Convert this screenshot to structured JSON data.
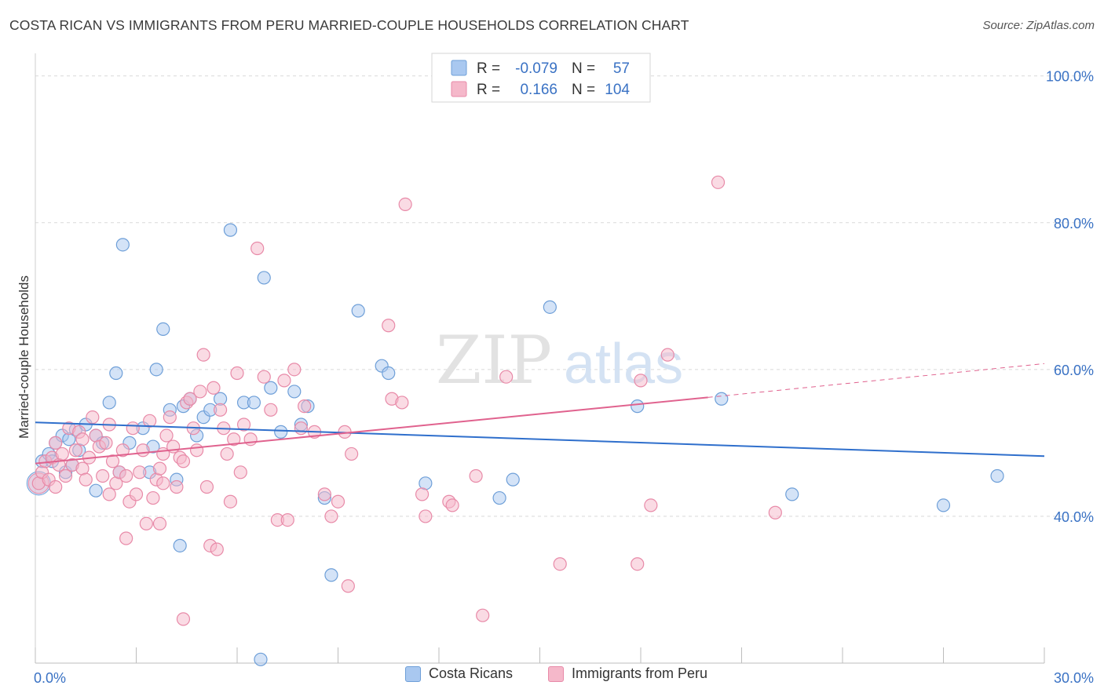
{
  "header": {
    "title": "COSTA RICAN VS IMMIGRANTS FROM PERU MARRIED-COUPLE HOUSEHOLDS CORRELATION CHART",
    "source": "Source: ZipAtlas.com"
  },
  "watermark": {
    "zip": "ZIP",
    "atlas": "atlas"
  },
  "colors": {
    "blue_fill": "#a9c8f0",
    "blue_stroke": "#6e9fd8",
    "blue_line": "#2f6fcc",
    "pink_fill": "#f5b8ca",
    "pink_stroke": "#e88aa8",
    "pink_line": "#e0628e",
    "axis_text": "#3a72c4",
    "grid": "#d9d9d9"
  },
  "stats_legend": {
    "rows": [
      {
        "r_label": "R =",
        "r_value": "-0.079",
        "n_label": "N =",
        "n_value": "57"
      },
      {
        "r_label": "R =",
        "r_value": "0.166",
        "n_label": "N =",
        "n_value": "104"
      }
    ]
  },
  "bottom_legend": {
    "items": [
      "Costa Ricans",
      "Immigrants from Peru"
    ]
  },
  "chart_data": {
    "type": "scatter",
    "title": "COSTA RICAN VS IMMIGRANTS FROM PERU MARRIED-COUPLE HOUSEHOLDS CORRELATION CHART",
    "xlabel": "",
    "ylabel": "Married-couple Households",
    "xlim": [
      0,
      30
    ],
    "ylim": [
      20,
      102
    ],
    "x_tick_labels": [
      "0.0%",
      "30.0%"
    ],
    "y_ticks": [
      40,
      60,
      80,
      100
    ],
    "y_tick_labels": [
      "40.0%",
      "60.0%",
      "80.0%",
      "100.0%"
    ],
    "grid": true,
    "legend_position": "top-center",
    "series": [
      {
        "name": "Costa Ricans",
        "color": "#a9c8f0",
        "trend": {
          "x": [
            0,
            30
          ],
          "y": [
            52.8,
            48.2
          ]
        },
        "points": [
          [
            0.2,
            47.5
          ],
          [
            0.4,
            48.5
          ],
          [
            0.6,
            50.0
          ],
          [
            0.8,
            51.0
          ],
          [
            1.0,
            50.5
          ],
          [
            0.9,
            46.0
          ],
          [
            1.2,
            51.8
          ],
          [
            1.5,
            52.5
          ],
          [
            1.3,
            49.0
          ],
          [
            1.8,
            51.0
          ],
          [
            2.0,
            50.0
          ],
          [
            2.2,
            55.5
          ],
          [
            2.4,
            59.5
          ],
          [
            1.8,
            43.5
          ],
          [
            2.6,
            77.0
          ],
          [
            2.5,
            46.0
          ],
          [
            3.2,
            52.0
          ],
          [
            3.6,
            60.0
          ],
          [
            3.8,
            65.5
          ],
          [
            3.5,
            49.5
          ],
          [
            4.0,
            54.5
          ],
          [
            4.2,
            45.0
          ],
          [
            4.4,
            55.0
          ],
          [
            4.6,
            56.0
          ],
          [
            4.8,
            51.0
          ],
          [
            5.0,
            53.5
          ],
          [
            5.2,
            54.5
          ],
          [
            5.5,
            56.0
          ],
          [
            5.8,
            79.0
          ],
          [
            6.2,
            55.5
          ],
          [
            6.5,
            55.5
          ],
          [
            6.8,
            72.5
          ],
          [
            7.0,
            57.5
          ],
          [
            7.3,
            51.5
          ],
          [
            7.7,
            57.0
          ],
          [
            7.9,
            52.5
          ],
          [
            8.1,
            55.0
          ],
          [
            8.6,
            42.5
          ],
          [
            8.8,
            32.0
          ],
          [
            9.6,
            68.0
          ],
          [
            10.3,
            60.5
          ],
          [
            10.5,
            59.5
          ],
          [
            11.6,
            44.5
          ],
          [
            13.8,
            42.5
          ],
          [
            14.2,
            45.0
          ],
          [
            15.3,
            68.5
          ],
          [
            17.9,
            55.0
          ],
          [
            20.4,
            56.0
          ],
          [
            22.5,
            43.0
          ],
          [
            27.0,
            41.5
          ],
          [
            28.6,
            45.5
          ],
          [
            4.3,
            36.0
          ],
          [
            6.7,
            20.5
          ],
          [
            0.5,
            47.5
          ],
          [
            1.1,
            47.0
          ],
          [
            3.4,
            46.0
          ],
          [
            2.8,
            50.0
          ]
        ]
      },
      {
        "name": "Immigrants from Peru",
        "color": "#f5b8ca",
        "trend": {
          "x": [
            0,
            20
          ],
          "y": [
            47.2,
            56.2
          ]
        },
        "trend_dashed": {
          "x": [
            20,
            30
          ],
          "y": [
            56.2,
            60.8
          ]
        },
        "points": [
          [
            0.1,
            44.5
          ],
          [
            0.2,
            46.0
          ],
          [
            0.3,
            47.5
          ],
          [
            0.4,
            45.0
          ],
          [
            0.5,
            48.0
          ],
          [
            0.6,
            50.0
          ],
          [
            0.7,
            47.0
          ],
          [
            0.8,
            48.5
          ],
          [
            0.9,
            45.5
          ],
          [
            1.0,
            52.0
          ],
          [
            1.1,
            47.0
          ],
          [
            1.2,
            49.0
          ],
          [
            1.3,
            51.5
          ],
          [
            1.4,
            46.5
          ],
          [
            1.5,
            45.0
          ],
          [
            1.6,
            48.0
          ],
          [
            1.7,
            53.5
          ],
          [
            1.8,
            51.0
          ],
          [
            1.9,
            49.5
          ],
          [
            2.0,
            45.5
          ],
          [
            2.1,
            50.0
          ],
          [
            2.2,
            52.5
          ],
          [
            2.3,
            47.5
          ],
          [
            2.4,
            44.5
          ],
          [
            2.5,
            46.0
          ],
          [
            2.6,
            49.0
          ],
          [
            2.7,
            45.5
          ],
          [
            2.8,
            42.0
          ],
          [
            2.9,
            52.0
          ],
          [
            3.0,
            43.0
          ],
          [
            3.1,
            46.0
          ],
          [
            3.2,
            49.0
          ],
          [
            3.3,
            39.0
          ],
          [
            3.4,
            53.0
          ],
          [
            3.5,
            42.5
          ],
          [
            3.6,
            45.0
          ],
          [
            3.7,
            46.5
          ],
          [
            3.8,
            48.5
          ],
          [
            3.9,
            51.0
          ],
          [
            4.0,
            53.5
          ],
          [
            4.1,
            49.5
          ],
          [
            4.2,
            44.0
          ],
          [
            4.3,
            48.0
          ],
          [
            4.4,
            47.5
          ],
          [
            4.5,
            55.5
          ],
          [
            4.6,
            56.0
          ],
          [
            4.7,
            52.0
          ],
          [
            4.8,
            49.0
          ],
          [
            4.9,
            57.0
          ],
          [
            5.0,
            62.0
          ],
          [
            5.1,
            44.0
          ],
          [
            5.2,
            36.0
          ],
          [
            5.3,
            57.5
          ],
          [
            5.4,
            35.5
          ],
          [
            5.5,
            54.5
          ],
          [
            5.6,
            52.0
          ],
          [
            5.7,
            48.5
          ],
          [
            5.8,
            42.0
          ],
          [
            5.9,
            50.5
          ],
          [
            6.0,
            59.5
          ],
          [
            6.2,
            52.5
          ],
          [
            6.4,
            50.5
          ],
          [
            6.6,
            76.5
          ],
          [
            6.8,
            59.0
          ],
          [
            7.0,
            54.5
          ],
          [
            7.2,
            39.5
          ],
          [
            7.4,
            58.5
          ],
          [
            7.5,
            39.5
          ],
          [
            7.7,
            60.0
          ],
          [
            7.9,
            52.0
          ],
          [
            8.0,
            55.0
          ],
          [
            8.3,
            51.5
          ],
          [
            8.6,
            43.0
          ],
          [
            8.8,
            40.0
          ],
          [
            9.0,
            42.0
          ],
          [
            9.2,
            51.5
          ],
          [
            9.3,
            30.5
          ],
          [
            9.4,
            48.5
          ],
          [
            10.5,
            66.0
          ],
          [
            10.6,
            56.0
          ],
          [
            10.9,
            55.5
          ],
          [
            11.0,
            82.5
          ],
          [
            11.5,
            43.0
          ],
          [
            11.6,
            40.0
          ],
          [
            12.3,
            42.0
          ],
          [
            12.4,
            41.5
          ],
          [
            13.1,
            45.5
          ],
          [
            13.3,
            26.5
          ],
          [
            14.0,
            59.0
          ],
          [
            15.6,
            33.5
          ],
          [
            17.9,
            33.5
          ],
          [
            18.0,
            58.5
          ],
          [
            18.3,
            41.5
          ],
          [
            18.8,
            62.0
          ],
          [
            20.3,
            85.5
          ],
          [
            22.0,
            40.5
          ],
          [
            3.7,
            39.0
          ],
          [
            2.7,
            37.0
          ],
          [
            4.4,
            26.0
          ],
          [
            1.4,
            50.5
          ],
          [
            0.6,
            44.0
          ],
          [
            2.2,
            43.0
          ],
          [
            3.8,
            44.5
          ],
          [
            6.1,
            46.0
          ]
        ]
      }
    ]
  }
}
